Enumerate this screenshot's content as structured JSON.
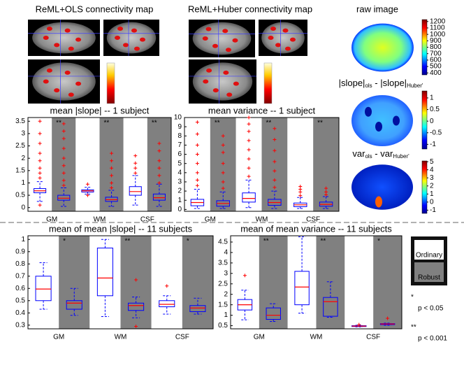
{
  "images": {
    "titles": [
      "ReML+OLS connectivity map",
      "ReML+Huber connectivity map",
      "raw image"
    ],
    "diff_titles": [
      [
        {
          "text": "|slope|"
        },
        {
          "text": "ols",
          "sub": true
        },
        {
          "text": " - |slope|"
        },
        {
          "text": "Huber'",
          "sub": true
        }
      ],
      [
        {
          "text": "var"
        },
        {
          "text": "ols",
          "sub": true
        },
        {
          "text": " - "
        },
        {
          "text": "var"
        },
        {
          "text": "Huber'",
          "sub": true
        }
      ]
    ],
    "colorbars": [
      {
        "map": "jet",
        "lim": [
          370,
          1230
        ],
        "ticks": [
          400,
          500,
          600,
          700,
          800,
          900,
          1000,
          1100,
          1200
        ]
      },
      {
        "map": "jet",
        "lim": [
          -1.2,
          1.3
        ],
        "ticks": [
          -1,
          -0.5,
          0,
          0.5,
          1
        ]
      },
      {
        "map": "jet",
        "lim": [
          -1.4,
          5.1
        ],
        "ticks": [
          -1,
          0,
          1,
          2,
          3,
          4,
          5
        ]
      }
    ]
  },
  "legend": {
    "items": [
      {
        "label": "Ordinary",
        "color": "#ffffff"
      },
      {
        "label": "Robust",
        "color": "#808080"
      }
    ],
    "notes": [
      {
        "mark": "*",
        "text": "p < 0.05"
      },
      {
        "mark": "**",
        "text": "p < 0.001"
      }
    ]
  },
  "chart_data": [
    {
      "type": "box",
      "title": "mean |slope| -- 1 subject",
      "categories": [
        "GM",
        "WM",
        "CSF"
      ],
      "significance": [
        "**",
        "**",
        "**"
      ],
      "ylim": [
        -0.15,
        3.65
      ],
      "yticks": [
        0,
        0.5,
        1,
        1.5,
        2,
        2.5,
        3,
        3.5
      ],
      "box_color": "#0000ff",
      "median_color": "#ff0000",
      "outlier_color": "#ff0000",
      "series": [
        {
          "background": "#ffffff",
          "whislo": [
            0.25,
            0.55,
            0.1
          ],
          "q1": [
            0.6,
            0.63,
            0.5
          ],
          "median": [
            0.68,
            0.68,
            0.65
          ],
          "q3": [
            0.77,
            0.72,
            0.85
          ],
          "whishi": [
            1.05,
            0.82,
            1.3
          ],
          "outliers": [
            [
              1.2,
              1.4,
              1.6,
              1.9,
              2.2,
              2.6,
              3.0,
              3.5,
              0.1
            ],
            [
              0.95,
              0.5
            ],
            [
              1.4,
              1.6,
              1.8,
              2.1
            ]
          ]
        },
        {
          "background": "#808080",
          "whislo": [
            0.05,
            0.05,
            0.05
          ],
          "q1": [
            0.3,
            0.25,
            0.3
          ],
          "median": [
            0.38,
            0.32,
            0.4
          ],
          "q3": [
            0.5,
            0.42,
            0.55
          ],
          "whishi": [
            0.8,
            0.7,
            0.95
          ],
          "outliers": [
            [
              0.9,
              1.1,
              1.4,
              1.7,
              2.0,
              2.4,
              2.8,
              3.1,
              3.4
            ],
            [
              0.8,
              1.0,
              1.3,
              1.6,
              1.9,
              2.2
            ],
            [
              1.0,
              1.3,
              1.6,
              1.9,
              2.3,
              2.6
            ]
          ]
        }
      ]
    },
    {
      "type": "box",
      "title": "mean variance -- 1 subject",
      "categories": [
        "GM",
        "WM",
        "CSF"
      ],
      "significance": [
        "**",
        "**",
        "**"
      ],
      "ylim": [
        -0.2,
        10
      ],
      "yticks": [
        0,
        1,
        2,
        3,
        4,
        5,
        6,
        7,
        8,
        9,
        10
      ],
      "box_color": "#0000ff",
      "median_color": "#ff0000",
      "outlier_color": "#ff0000",
      "series": [
        {
          "background": "#ffffff",
          "whislo": [
            0.1,
            0.2,
            0.1
          ],
          "q1": [
            0.4,
            0.8,
            0.3
          ],
          "median": [
            0.75,
            1.2,
            0.5
          ],
          "q3": [
            1.1,
            1.8,
            0.7
          ],
          "whishi": [
            2.2,
            3.2,
            1.3
          ],
          "outliers": [
            [
              2.6,
              3.2,
              4.0,
              5.0,
              6.0,
              7.0,
              8.2,
              9.5
            ],
            [
              3.6,
              4.5,
              5.5,
              6.5,
              7.5,
              8.5,
              9.3,
              10
            ],
            [
              1.5,
              1.9,
              2.2,
              2.5
            ]
          ]
        },
        {
          "background": "#808080",
          "whislo": [
            0.1,
            0.1,
            0.1
          ],
          "q1": [
            0.35,
            0.45,
            0.35
          ],
          "median": [
            0.65,
            0.75,
            0.55
          ],
          "q3": [
            0.95,
            1.1,
            0.8
          ],
          "whishi": [
            1.9,
            2,
            1.4
          ],
          "outliers": [
            [
              2.3,
              3.0,
              4.0,
              5.0,
              6.2,
              7.0,
              8.0
            ],
            [
              2.4,
              3.2,
              4.2,
              5.2,
              6.4,
              7.6,
              8.8
            ],
            [
              1.6,
              1.9,
              2.3
            ]
          ]
        }
      ]
    },
    {
      "type": "box",
      "title": "mean of mean |slope| -- 11 subjects",
      "categories": [
        "GM",
        "WM",
        "CSF"
      ],
      "significance": [
        "*",
        "**",
        "*"
      ],
      "ylim": [
        0.27,
        1.03
      ],
      "yticks": [
        0.3,
        0.4,
        0.5,
        0.6,
        0.7,
        0.8,
        0.9,
        1
      ],
      "box_color": "#0000ff",
      "median_color": "#ff0000",
      "outlier_color": "#ff0000",
      "series": [
        {
          "background": "#ffffff",
          "whislo": [
            0.43,
            0.37,
            0.39
          ],
          "q1": [
            0.5,
            0.54,
            0.45
          ],
          "median": [
            0.595,
            0.685,
            0.47
          ],
          "q3": [
            0.7,
            0.93,
            0.5
          ],
          "whishi": [
            0.81,
            1.0,
            0.54
          ],
          "outliers": [
            [],
            [],
            [
              0.62
            ]
          ]
        },
        {
          "background": "#808080",
          "whislo": [
            0.38,
            0.36,
            0.39
          ],
          "q1": [
            0.43,
            0.42,
            0.41
          ],
          "median": [
            0.48,
            0.46,
            0.44
          ],
          "q3": [
            0.5,
            0.48,
            0.46
          ],
          "whishi": [
            0.6,
            0.53,
            0.52
          ],
          "outliers": [
            [],
            [
              0.67,
              0.29
            ],
            []
          ]
        }
      ]
    },
    {
      "type": "box",
      "title": "mean of mean variance -- 11 subjects",
      "categories": [
        "GM",
        "WM",
        "CSF"
      ],
      "significance": [
        "**",
        "**",
        "*"
      ],
      "ylim": [
        0.35,
        4.8
      ],
      "yticks": [
        0.5,
        1,
        1.5,
        2,
        2.5,
        3,
        3.5,
        4,
        4.5
      ],
      "box_color": "#0000ff",
      "median_color": "#ff0000",
      "outlier_color": "#ff0000",
      "series": [
        {
          "background": "#ffffff",
          "whislo": [
            0.78,
            1.1,
            0.44
          ],
          "q1": [
            1.25,
            1.5,
            0.46
          ],
          "median": [
            1.5,
            2.35,
            0.48
          ],
          "q3": [
            1.75,
            3.1,
            0.5
          ],
          "whishi": [
            2.2,
            4.75,
            0.52
          ],
          "outliers": [
            [
              2.9
            ],
            [],
            [
              0.55
            ]
          ]
        },
        {
          "background": "#808080",
          "whislo": [
            0.7,
            0.9,
            0.52
          ],
          "q1": [
            0.8,
            0.95,
            0.55
          ],
          "median": [
            1.0,
            1.65,
            0.58
          ],
          "q3": [
            1.35,
            1.85,
            0.6
          ],
          "whishi": [
            1.55,
            2.6,
            0.62
          ],
          "outliers": [
            [],
            [],
            [
              0.85
            ]
          ]
        }
      ]
    }
  ]
}
